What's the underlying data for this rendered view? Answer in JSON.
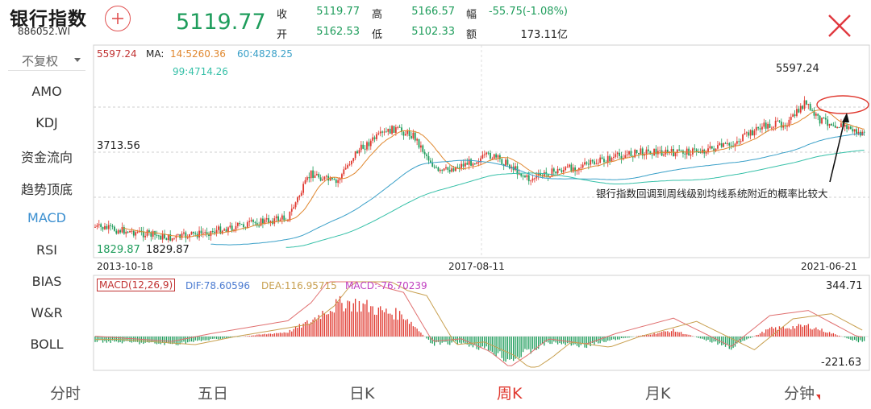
{
  "header": {
    "name": "银行指数",
    "code": "886052.WI",
    "last_price": "5119.77",
    "quote": {
      "close_label": "收",
      "close": "5119.77",
      "open_label": "开",
      "open": "5162.53",
      "high_label": "高",
      "high": "5166.57",
      "low_label": "低",
      "low": "5102.33",
      "change_label": "幅",
      "change": "-55.75(-1.08%)",
      "amount_label": "额",
      "amount": "173.11亿"
    },
    "add_icon": "plus-circle-icon",
    "close_icon": "close-x-icon"
  },
  "sidebar": {
    "adjust": "不复权",
    "items": [
      "AMO",
      "KDJ",
      "资金流向",
      "趋势顶底",
      "MACD",
      "RSI",
      "BIAS",
      "W&R",
      "BOLL"
    ],
    "active": "MACD"
  },
  "legend": {
    "price_top": "5597.24",
    "ma_label": "MA:",
    "ma14": "14:5260.36",
    "ma60": "60:4828.25",
    "ma99": "99:4714.26",
    "macd_params": "MACD(12,26,9)",
    "dif": "DIF:78.60596",
    "dea": "DEA:116.95715",
    "macd": "MACD:-76.70239"
  },
  "colors": {
    "up": "#e0382f",
    "down": "#1f9d5c",
    "ma14": "#e0872e",
    "ma60": "#3aa0c8",
    "ma99": "#36c0a8",
    "dif": "#e07070",
    "dea": "#c8a050"
  },
  "chart_data": {
    "type": "candlestick",
    "price_axis": {
      "top_label": "5597.24",
      "mid_label": "3713.56",
      "ylim": [
        1829.87,
        5597.24
      ]
    },
    "marks": {
      "max_label": "5597.24",
      "min_label_left": "1829.87",
      "min_label": "1829.87"
    },
    "x_dates": [
      "2013-10-18",
      "2017-08-11",
      "2021-06-21"
    ],
    "macd_axis": {
      "max_label": "344.71",
      "min_label": "-221.63"
    },
    "annotation": "银行指数回调到周线级别均线系统附近的概率比较大"
  },
  "tabs": [
    {
      "label": "分时",
      "active": false
    },
    {
      "label": "五日",
      "active": false
    },
    {
      "label": "日K",
      "active": false
    },
    {
      "label": "周K",
      "active": true
    },
    {
      "label": "月K",
      "active": false
    },
    {
      "label": "分钟",
      "active": false
    }
  ]
}
